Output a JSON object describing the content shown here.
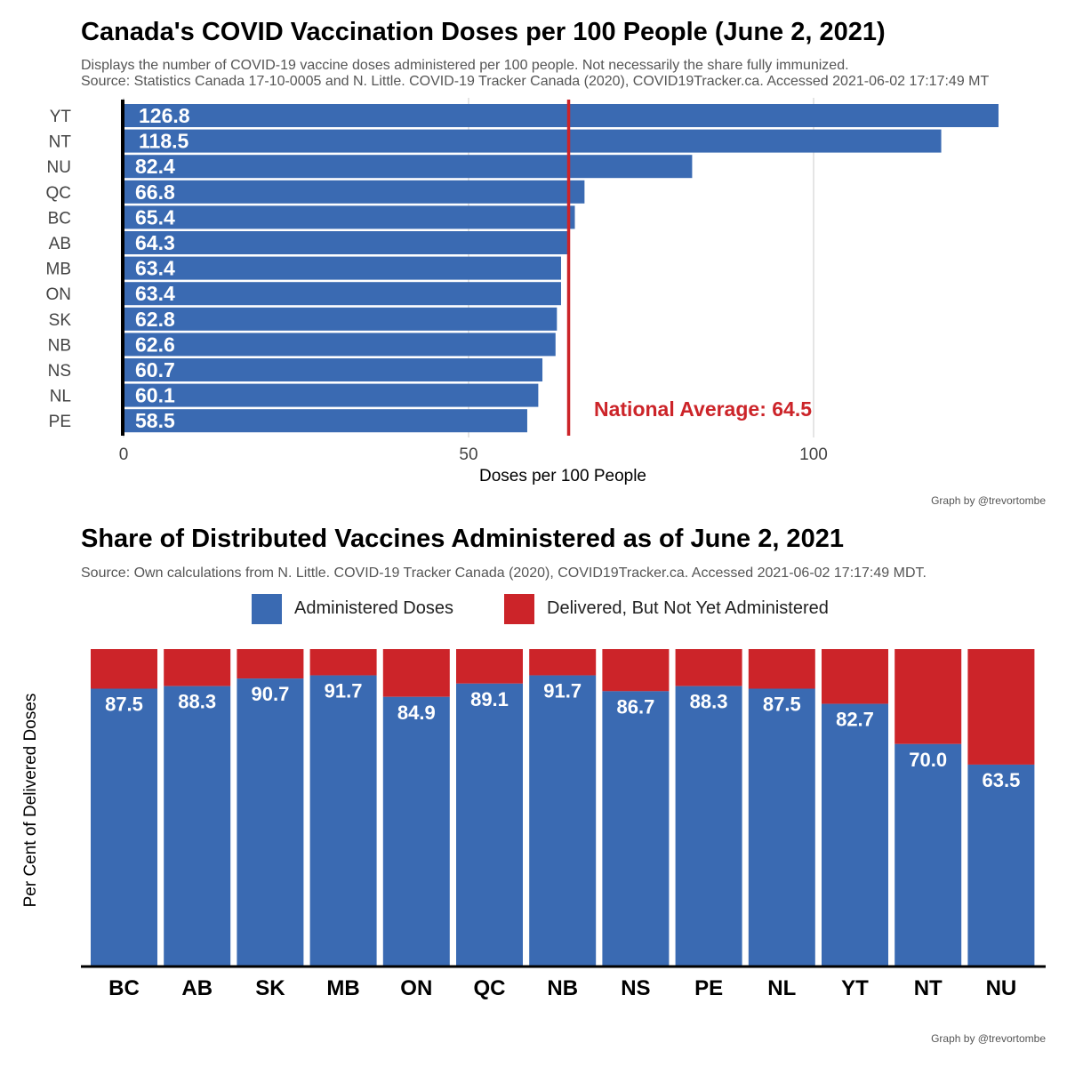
{
  "colors": {
    "administered": "#3a6ab2",
    "undelivered": "#cc2429",
    "avg_line": "#cc2429",
    "axis": "#000000",
    "grid": "#e5e5e5"
  },
  "top": {
    "title": "Canada's COVID Vaccination Doses per 100 People (June 2, 2021)",
    "subtitle1": "Displays the number of COVID-19 vaccine doses administered per 100 people. Not necessarily the share fully immunized.",
    "subtitle2": "Source: Statistics Canada 17-10-0005 and N. Little. COVID-19 Tracker Canada (2020), COVID19Tracker.ca. Accessed 2021-06-02 17:17:49 MT",
    "credit": "Graph by @trevortombe"
  },
  "bottom": {
    "title": "Share of Distributed Vaccines Administered as of June 2, 2021",
    "subtitle": "Source: Own calculations from N. Little. COVID-19 Tracker Canada (2020), COVID19Tracker.ca. Accessed 2021-06-02 17:17:49 MDT.",
    "legend_administered": "Administered Doses",
    "legend_undelivered": "Delivered, But Not Yet Administered",
    "credit": "Graph by @trevortombe"
  },
  "chart_data": [
    {
      "type": "bar",
      "orientation": "horizontal",
      "title": "Canada's COVID Vaccination Doses per 100 People (June 2, 2021)",
      "xlabel": "Doses per 100 People",
      "ylabel": "",
      "categories": [
        "YT",
        "NT",
        "NU",
        "QC",
        "BC",
        "AB",
        "MB",
        "ON",
        "SK",
        "NB",
        "NS",
        "NL",
        "PE"
      ],
      "values": [
        126.8,
        118.5,
        82.4,
        66.8,
        65.4,
        64.3,
        63.4,
        63.4,
        62.8,
        62.6,
        60.7,
        60.1,
        58.5
      ],
      "labels": [
        "126.8",
        "118.5",
        "82.4",
        "66.8",
        "65.4",
        "64.3",
        "63.4",
        "63.4",
        "62.8",
        "62.6",
        "60.7",
        "60.1",
        "58.5"
      ],
      "xlim": [
        0,
        127
      ],
      "xticks": [
        0,
        50,
        100
      ],
      "xtick_labels": [
        "0",
        "50",
        "100"
      ],
      "reference_line": {
        "value": 64.5,
        "label": "National Average: 64.5"
      }
    },
    {
      "type": "bar",
      "orientation": "vertical",
      "stacked": true,
      "title": "Share of Distributed Vaccines Administered as of June 2, 2021",
      "xlabel": "",
      "ylabel": "Per Cent of Delivered Doses",
      "ylim": [
        0,
        100
      ],
      "categories": [
        "BC",
        "AB",
        "SK",
        "MB",
        "ON",
        "QC",
        "NB",
        "NS",
        "PE",
        "NL",
        "YT",
        "NT",
        "NU"
      ],
      "series": [
        {
          "name": "Administered Doses",
          "values": [
            87.5,
            88.3,
            90.7,
            91.7,
            84.9,
            89.1,
            91.7,
            86.7,
            88.3,
            87.5,
            82.7,
            70.0,
            63.5
          ]
        },
        {
          "name": "Delivered, But Not Yet Administered",
          "values": [
            12.5,
            11.7,
            9.3,
            8.3,
            15.1,
            10.9,
            8.3,
            13.3,
            11.7,
            12.5,
            17.3,
            30.0,
            36.5
          ]
        }
      ],
      "labels": [
        "87.5",
        "88.3",
        "90.7",
        "91.7",
        "84.9",
        "89.1",
        "91.7",
        "86.7",
        "88.3",
        "87.5",
        "82.7",
        "70.0",
        "63.5"
      ]
    }
  ]
}
